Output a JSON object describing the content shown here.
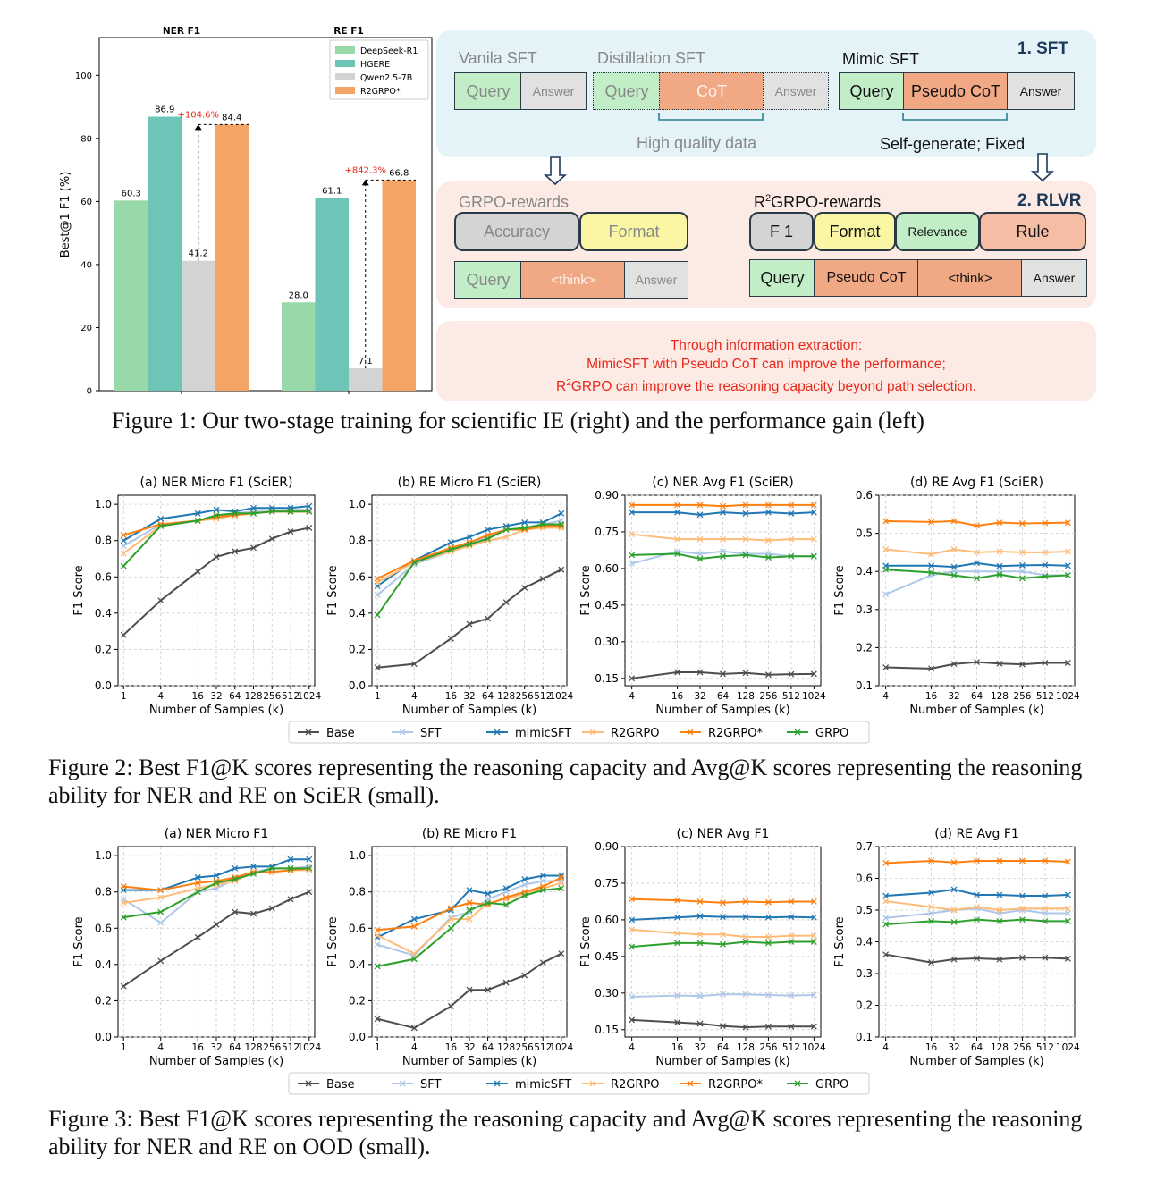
{
  "figure1": {
    "caption": "Figure 1: Our two-stage training for scientific IE (right) and the performance gain (left)",
    "bar_chart": {
      "ylabel": "Best@1 F1 (%)",
      "group_titles": [
        "NER F1",
        "RE F1"
      ],
      "yticks": [
        "0",
        "20",
        "40",
        "60",
        "80",
        "100"
      ],
      "gain_ner": "+104.6%",
      "gain_re": "+842.3%",
      "colors": [
        "#99d8a9",
        "#6cc5b7",
        "#d3d3d3",
        "#f4a465"
      ]
    },
    "diagram": {
      "sft_title": "1. SFT",
      "rlvr_title": "2. RLVR",
      "vanila_title": "Vanila SFT",
      "distill_title": "Distillation SFT",
      "mimic_title": "Mimic SFT",
      "query": "Query",
      "answer": "Answer",
      "cot": "CoT",
      "pseudo_cot": "Pseudo CoT",
      "high_quality": "High quality data",
      "self_generate": "Self-generate; Fixed",
      "grpo_title": "GRPO-rewards",
      "accuracy": "Accuracy",
      "format": "Format",
      "think": "<think>",
      "r2_title_pre": "R",
      "r2_title_sup": "2",
      "r2_title_post": "GRPO-rewards",
      "f1": "F 1",
      "relevance": "Relevance",
      "rule": "Rule",
      "conclusion_1": "Through information extraction:",
      "conclusion_2": "MimicSFT with Pseudo CoT can improve the performance;",
      "conclusion_3_pre": "R",
      "conclusion_3_sup": "2",
      "conclusion_3_post": "GRPO can improve the reasoning capacity beyond path selection."
    }
  },
  "figure2": {
    "caption": "Figure 2: Best F1@K scores representing the reasoning capacity and Avg@K scores representing the reasoning ability for NER and RE on SciER (small).",
    "panel_titles": [
      "(a) NER Micro F1 (SciER)",
      "(b) RE Micro F1 (SciER)",
      "(c) NER Avg F1 (SciER)",
      "(d) RE Avg F1 (SciER)"
    ]
  },
  "figure3": {
    "caption": "Figure 3: Best F1@K scores representing the reasoning capacity and Avg@K scores representing the reasoning ability for NER and RE on OOD (small).",
    "panel_titles": [
      "(a) NER Micro F1",
      "(b) RE Micro F1",
      "(c) NER Avg F1",
      "(d) RE Avg F1"
    ]
  },
  "line_axes": {
    "xlabel": "Number of Samples (k)",
    "ylabel": "F1 Score"
  },
  "legend": {
    "labels": [
      "Base",
      "SFT",
      "mimicSFT",
      "R2GRPO",
      "R2GRPO*",
      "GRPO"
    ],
    "colors": [
      "#4d4d4d",
      "#aec7e8",
      "#1f77b4",
      "#ffbb78",
      "#ff7f0e",
      "#2ca02c"
    ]
  },
  "chart_data": [
    {
      "type": "bar",
      "categories": [
        "NER F1",
        "RE F1"
      ],
      "series": [
        {
          "name": "DeepSeek-R1",
          "values": [
            60.3,
            28.0
          ]
        },
        {
          "name": "HGERE",
          "values": [
            86.9,
            61.1
          ]
        },
        {
          "name": "Qwen2.5-7B",
          "values": [
            41.2,
            7.1
          ]
        },
        {
          "name": "R2GRPO*",
          "values": [
            84.4,
            66.8
          ]
        }
      ],
      "ylabel": "Best@1 F1 (%)",
      "ylim": [
        0,
        112
      ],
      "legend": "top-right"
    },
    {
      "type": "line",
      "title": "(a) NER Micro F1 (SciER)",
      "x": [
        "1",
        "4",
        "16",
        "32",
        "64",
        "128",
        "256",
        "512",
        "1024"
      ],
      "ylim": [
        0,
        1.05
      ],
      "yticks": [
        "0.0",
        "0.2",
        "0.4",
        "0.6",
        "0.8",
        "1.0"
      ],
      "grid": true,
      "series": [
        {
          "name": "Base",
          "values": [
            0.28,
            0.47,
            0.63,
            0.71,
            0.74,
            0.76,
            0.81,
            0.85,
            0.87
          ]
        },
        {
          "name": "SFT",
          "values": [
            0.77,
            0.89,
            0.91,
            0.93,
            0.95,
            0.96,
            0.96,
            0.97,
            0.97
          ]
        },
        {
          "name": "mimicSFT",
          "values": [
            0.8,
            0.92,
            0.95,
            0.97,
            0.96,
            0.98,
            0.98,
            0.98,
            0.99
          ]
        },
        {
          "name": "R2GRPO",
          "values": [
            0.73,
            0.88,
            0.91,
            0.92,
            0.94,
            0.95,
            0.96,
            0.96,
            0.96
          ]
        },
        {
          "name": "R2GRPO*",
          "values": [
            0.83,
            0.89,
            0.91,
            0.93,
            0.94,
            0.95,
            0.96,
            0.96,
            0.96
          ]
        },
        {
          "name": "GRPO",
          "values": [
            0.66,
            0.88,
            0.91,
            0.94,
            0.95,
            0.95,
            0.96,
            0.96,
            0.96
          ]
        }
      ]
    },
    {
      "type": "line",
      "title": "(b) RE Micro F1 (SciER)",
      "x": [
        "1",
        "4",
        "16",
        "32",
        "64",
        "128",
        "256",
        "512",
        "1024"
      ],
      "ylim": [
        0,
        1.05
      ],
      "yticks": [
        "0.0",
        "0.2",
        "0.4",
        "0.6",
        "0.8",
        "1.0"
      ],
      "grid": true,
      "series": [
        {
          "name": "Base",
          "values": [
            0.1,
            0.12,
            0.26,
            0.34,
            0.37,
            0.46,
            0.54,
            0.59,
            0.64
          ]
        },
        {
          "name": "SFT",
          "values": [
            0.5,
            0.67,
            0.74,
            0.78,
            0.82,
            0.86,
            0.87,
            0.89,
            0.91
          ]
        },
        {
          "name": "mimicSFT",
          "values": [
            0.55,
            0.69,
            0.79,
            0.82,
            0.86,
            0.88,
            0.9,
            0.9,
            0.95
          ]
        },
        {
          "name": "R2GRPO",
          "values": [
            0.57,
            0.68,
            0.74,
            0.77,
            0.8,
            0.82,
            0.86,
            0.87,
            0.87
          ]
        },
        {
          "name": "R2GRPO*",
          "values": [
            0.59,
            0.69,
            0.76,
            0.79,
            0.83,
            0.86,
            0.86,
            0.88,
            0.88
          ]
        },
        {
          "name": "GRPO",
          "values": [
            0.39,
            0.68,
            0.75,
            0.78,
            0.81,
            0.86,
            0.87,
            0.89,
            0.89
          ]
        }
      ]
    },
    {
      "type": "line",
      "title": "(c) NER Avg F1 (SciER)",
      "x": [
        "4",
        "16",
        "32",
        "64",
        "128",
        "256",
        "512",
        "1024"
      ],
      "ylim": [
        0.12,
        0.9
      ],
      "yticks": [
        "0.15",
        "0.30",
        "0.45",
        "0.60",
        "0.75",
        "0.90"
      ],
      "grid": true,
      "series": [
        {
          "name": "Base",
          "values": [
            0.15,
            0.175,
            0.175,
            0.168,
            0.172,
            0.165,
            0.167,
            0.168
          ]
        },
        {
          "name": "SFT",
          "values": [
            0.62,
            0.67,
            0.66,
            0.67,
            0.66,
            0.66,
            0.65,
            0.65
          ]
        },
        {
          "name": "mimicSFT",
          "values": [
            0.83,
            0.83,
            0.82,
            0.83,
            0.825,
            0.83,
            0.825,
            0.83
          ]
        },
        {
          "name": "R2GRPO",
          "values": [
            0.74,
            0.72,
            0.72,
            0.72,
            0.72,
            0.715,
            0.72,
            0.72
          ]
        },
        {
          "name": "R2GRPO*",
          "values": [
            0.86,
            0.86,
            0.86,
            0.855,
            0.86,
            0.86,
            0.86,
            0.86
          ]
        },
        {
          "name": "GRPO",
          "values": [
            0.655,
            0.66,
            0.64,
            0.65,
            0.655,
            0.645,
            0.65,
            0.65
          ]
        }
      ]
    },
    {
      "type": "line",
      "title": "(d) RE Avg F1 (SciER)",
      "x": [
        "4",
        "16",
        "32",
        "64",
        "128",
        "256",
        "512",
        "1024"
      ],
      "ylim": [
        0.1,
        0.6
      ],
      "yticks": [
        "0.1",
        "0.2",
        "0.3",
        "0.4",
        "0.5",
        "0.6"
      ],
      "grid": true,
      "series": [
        {
          "name": "Base",
          "values": [
            0.148,
            0.145,
            0.157,
            0.162,
            0.158,
            0.156,
            0.16,
            0.16
          ]
        },
        {
          "name": "SFT",
          "values": [
            0.34,
            0.39,
            0.4,
            0.4,
            0.4,
            0.4,
            0.39,
            0.39
          ]
        },
        {
          "name": "mimicSFT",
          "values": [
            0.415,
            0.415,
            0.412,
            0.422,
            0.414,
            0.416,
            0.417,
            0.415
          ]
        },
        {
          "name": "R2GRPO",
          "values": [
            0.458,
            0.445,
            0.458,
            0.45,
            0.452,
            0.45,
            0.45,
            0.452
          ]
        },
        {
          "name": "R2GRPO*",
          "values": [
            0.532,
            0.53,
            0.532,
            0.52,
            0.528,
            0.526,
            0.527,
            0.528
          ]
        },
        {
          "name": "GRPO",
          "values": [
            0.405,
            0.397,
            0.39,
            0.382,
            0.392,
            0.382,
            0.387,
            0.39
          ]
        }
      ]
    },
    {
      "type": "line",
      "title": "(a) NER Micro F1",
      "x": [
        "1",
        "4",
        "16",
        "32",
        "64",
        "128",
        "256",
        "512",
        "1024"
      ],
      "ylim": [
        0,
        1.05
      ],
      "yticks": [
        "0.0",
        "0.2",
        "0.4",
        "0.6",
        "0.8",
        "1.0"
      ],
      "grid": true,
      "series": [
        {
          "name": "Base",
          "values": [
            0.28,
            0.42,
            0.55,
            0.62,
            0.69,
            0.68,
            0.71,
            0.76,
            0.8
          ]
        },
        {
          "name": "SFT",
          "values": [
            0.76,
            0.63,
            0.8,
            0.82,
            0.87,
            0.91,
            0.93,
            0.93,
            0.94
          ]
        },
        {
          "name": "mimicSFT",
          "values": [
            0.81,
            0.81,
            0.88,
            0.89,
            0.93,
            0.94,
            0.94,
            0.98,
            0.98
          ]
        },
        {
          "name": "R2GRPO",
          "values": [
            0.74,
            0.77,
            0.82,
            0.84,
            0.86,
            0.91,
            0.91,
            0.92,
            0.92
          ]
        },
        {
          "name": "R2GRPO*",
          "values": [
            0.83,
            0.81,
            0.85,
            0.86,
            0.88,
            0.91,
            0.91,
            0.92,
            0.93
          ]
        },
        {
          "name": "GRPO",
          "values": [
            0.66,
            0.69,
            0.8,
            0.85,
            0.87,
            0.9,
            0.93,
            0.93,
            0.93
          ]
        }
      ]
    },
    {
      "type": "line",
      "title": "(b) RE Micro F1",
      "x": [
        "1",
        "4",
        "16",
        "32",
        "64",
        "128",
        "256",
        "512",
        "1024"
      ],
      "ylim": [
        0,
        1.05
      ],
      "yticks": [
        "0.0",
        "0.2",
        "0.4",
        "0.6",
        "0.8",
        "1.0"
      ],
      "grid": true,
      "series": [
        {
          "name": "Base",
          "values": [
            0.1,
            0.05,
            0.17,
            0.26,
            0.26,
            0.3,
            0.34,
            0.41,
            0.46
          ]
        },
        {
          "name": "SFT",
          "values": [
            0.51,
            0.45,
            0.66,
            0.69,
            0.76,
            0.8,
            0.84,
            0.86,
            0.86
          ]
        },
        {
          "name": "mimicSFT",
          "values": [
            0.55,
            0.65,
            0.7,
            0.81,
            0.79,
            0.82,
            0.87,
            0.89,
            0.89
          ]
        },
        {
          "name": "R2GRPO",
          "values": [
            0.56,
            0.46,
            0.65,
            0.65,
            0.74,
            0.76,
            0.79,
            0.82,
            0.85
          ]
        },
        {
          "name": "R2GRPO*",
          "values": [
            0.59,
            0.61,
            0.71,
            0.74,
            0.73,
            0.77,
            0.8,
            0.83,
            0.88
          ]
        },
        {
          "name": "GRPO",
          "values": [
            0.39,
            0.43,
            0.6,
            0.7,
            0.74,
            0.73,
            0.78,
            0.81,
            0.82
          ]
        }
      ]
    },
    {
      "type": "line",
      "title": "(c) NER Avg F1",
      "x": [
        "4",
        "16",
        "32",
        "64",
        "128",
        "256",
        "512",
        "1024"
      ],
      "ylim": [
        0.12,
        0.9
      ],
      "yticks": [
        "0.15",
        "0.30",
        "0.45",
        "0.60",
        "0.75",
        "0.90"
      ],
      "grid": true,
      "series": [
        {
          "name": "Base",
          "values": [
            0.19,
            0.18,
            0.175,
            0.165,
            0.16,
            0.163,
            0.163,
            0.163
          ]
        },
        {
          "name": "SFT",
          "values": [
            0.285,
            0.29,
            0.288,
            0.295,
            0.295,
            0.292,
            0.29,
            0.292
          ]
        },
        {
          "name": "mimicSFT",
          "values": [
            0.6,
            0.61,
            0.615,
            0.612,
            0.612,
            0.61,
            0.612,
            0.61
          ]
        },
        {
          "name": "R2GRPO",
          "values": [
            0.56,
            0.545,
            0.54,
            0.54,
            0.53,
            0.53,
            0.535,
            0.535
          ]
        },
        {
          "name": "R2GRPO*",
          "values": [
            0.685,
            0.68,
            0.675,
            0.67,
            0.675,
            0.672,
            0.675,
            0.675
          ]
        },
        {
          "name": "GRPO",
          "values": [
            0.49,
            0.505,
            0.505,
            0.5,
            0.51,
            0.505,
            0.51,
            0.51
          ]
        }
      ]
    },
    {
      "type": "line",
      "title": "(d) RE Avg F1",
      "x": [
        "4",
        "16",
        "32",
        "64",
        "128",
        "256",
        "512",
        "1024"
      ],
      "ylim": [
        0.1,
        0.7
      ],
      "yticks": [
        "0.1",
        "0.2",
        "0.3",
        "0.4",
        "0.5",
        "0.6",
        "0.7"
      ],
      "grid": true,
      "series": [
        {
          "name": "Base",
          "values": [
            0.36,
            0.335,
            0.345,
            0.348,
            0.345,
            0.35,
            0.35,
            0.347
          ]
        },
        {
          "name": "SFT",
          "values": [
            0.475,
            0.49,
            0.5,
            0.505,
            0.49,
            0.5,
            0.49,
            0.49
          ]
        },
        {
          "name": "mimicSFT",
          "values": [
            0.545,
            0.555,
            0.565,
            0.548,
            0.548,
            0.545,
            0.545,
            0.548
          ]
        },
        {
          "name": "R2GRPO",
          "values": [
            0.528,
            0.51,
            0.5,
            0.51,
            0.5,
            0.505,
            0.505,
            0.505
          ]
        },
        {
          "name": "R2GRPO*",
          "values": [
            0.648,
            0.655,
            0.65,
            0.655,
            0.655,
            0.655,
            0.655,
            0.652
          ]
        },
        {
          "name": "GRPO",
          "values": [
            0.455,
            0.465,
            0.462,
            0.47,
            0.465,
            0.47,
            0.465,
            0.465
          ]
        }
      ]
    }
  ]
}
